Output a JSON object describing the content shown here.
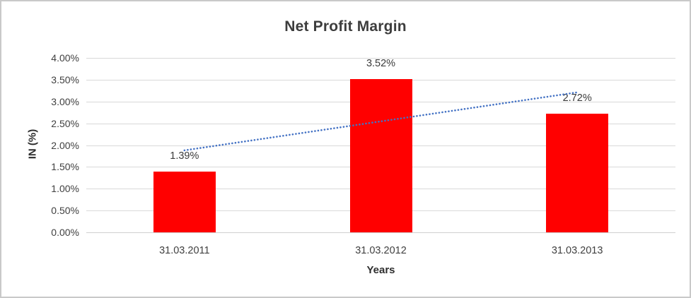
{
  "chart_data": {
    "type": "bar",
    "title": "Net Profit Margin",
    "xlabel": "Years",
    "ylabel": "IN (%)",
    "categories": [
      "31.03.2011",
      "31.03.2012",
      "31.03.2013"
    ],
    "values": [
      1.39,
      3.52,
      2.72
    ],
    "data_labels": [
      "1.39%",
      "3.52%",
      "2.72%"
    ],
    "ylim": [
      0,
      4.0
    ],
    "ytick_step": 0.5,
    "ytick_labels": [
      "0.00%",
      "0.50%",
      "1.00%",
      "1.50%",
      "2.00%",
      "2.50%",
      "3.00%",
      "3.50%",
      "4.00%"
    ],
    "grid": true,
    "legend": "none",
    "bar_color": "#ff0000",
    "gridline_color": "#d9d9d9",
    "text_color": "#404040",
    "trendline": {
      "type": "linear",
      "style": "dotted",
      "color": "#4472c4",
      "start_value": 1.88,
      "end_value": 3.21
    }
  }
}
